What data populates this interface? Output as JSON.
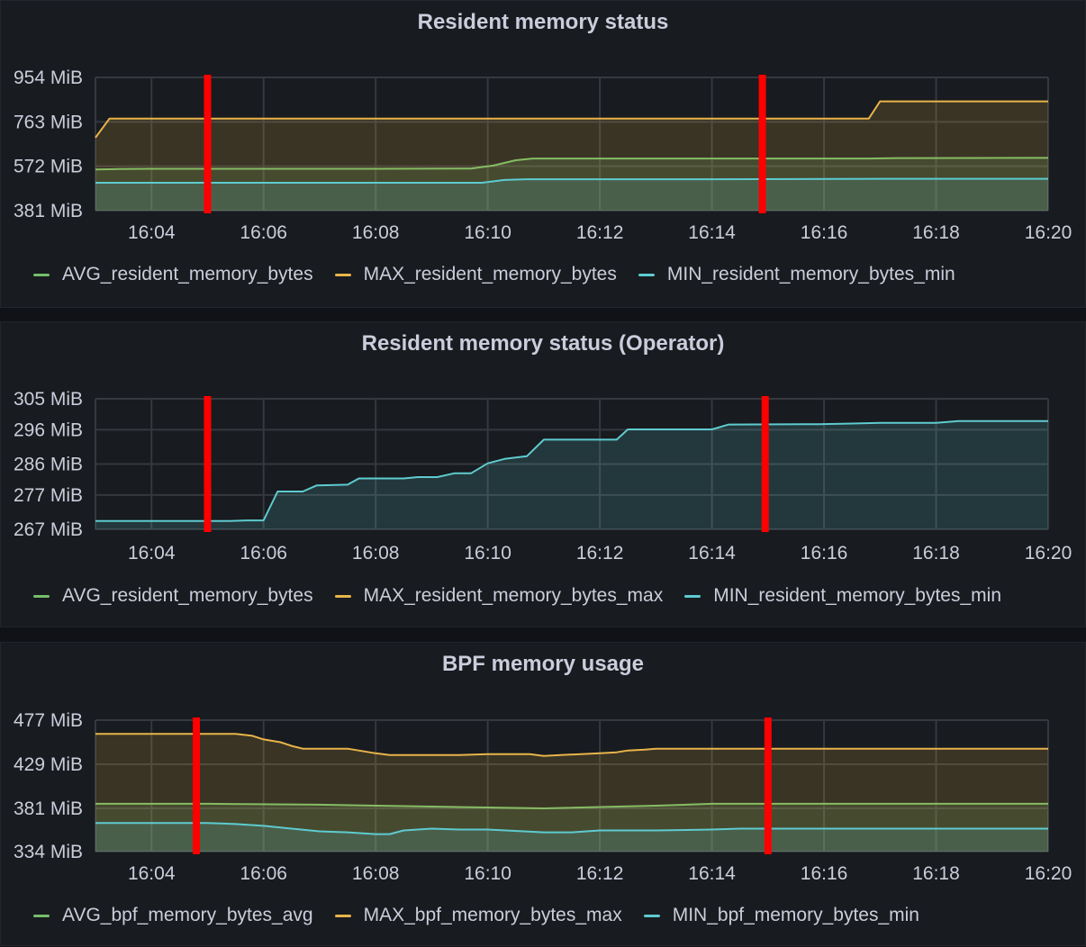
{
  "colors": {
    "avg": "#73bf69",
    "max": "#e8b44a",
    "min": "#5ecbd0",
    "marker": "#ff0000",
    "grid": "#35383e",
    "axis_text": "#ccccdc"
  },
  "chart_data": [
    {
      "type": "area",
      "title": "Resident memory status",
      "xlabel": "",
      "ylabel": "",
      "x_ticks": [
        "16:04",
        "16:06",
        "16:08",
        "16:10",
        "16:12",
        "16:14",
        "16:16",
        "16:18",
        "16:20"
      ],
      "y_ticks": [
        "954 MiB",
        "763 MiB",
        "572 MiB",
        "381 MiB"
      ],
      "xlim": [
        "16:03",
        "16:20"
      ],
      "ylim": [
        381,
        954
      ],
      "y_unit": "MiB",
      "grid": true,
      "legend_position": "bottom",
      "markers_x": [
        "16:05",
        "16:14.9"
      ],
      "series": [
        {
          "name": "AVG_resident_memory_bytes",
          "color_key": "avg",
          "x": [
            "16:03",
            "16:03.4",
            "16:04",
            "16:06",
            "16:08",
            "16:09.7",
            "16:10.1",
            "16:10.5",
            "16:10.8",
            "16:12",
            "16:14",
            "16:16.8",
            "16:17.3",
            "16:20"
          ],
          "y": [
            558,
            560,
            561,
            561,
            561,
            562,
            575,
            598,
            605,
            605,
            605,
            605,
            607,
            608
          ]
        },
        {
          "name": "MAX_resident_memory_bytes",
          "color_key": "max",
          "x": [
            "16:03",
            "16:03.25",
            "16:04",
            "16:06",
            "16:08",
            "16:10",
            "16:12",
            "16:14",
            "16:16.8",
            "16:17",
            "16:20"
          ],
          "y": [
            695,
            777,
            777,
            777,
            777,
            777,
            777,
            777,
            777,
            851,
            851
          ]
        },
        {
          "name": "MIN_resident_memory_bytes_min",
          "color_key": "min",
          "x": [
            "16:03",
            "16:06",
            "16:09.9",
            "16:10.3",
            "16:10.7",
            "16:12",
            "16:14",
            "16:17",
            "16:20"
          ],
          "y": [
            501,
            501,
            501,
            513,
            516,
            516,
            516,
            518,
            518
          ]
        }
      ]
    },
    {
      "type": "area",
      "title": "Resident memory status (Operator)",
      "xlabel": "",
      "ylabel": "",
      "x_ticks": [
        "16:04",
        "16:06",
        "16:08",
        "16:10",
        "16:12",
        "16:14",
        "16:16",
        "16:18",
        "16:20"
      ],
      "y_ticks": [
        "305 MiB",
        "296 MiB",
        "286 MiB",
        "277 MiB",
        "267 MiB"
      ],
      "xlim": [
        "16:03",
        "16:20"
      ],
      "ylim": [
        267,
        305
      ],
      "y_unit": "MiB",
      "grid": true,
      "legend_position": "bottom",
      "markers_x": [
        "16:05",
        "16:14.95"
      ],
      "series": [
        {
          "name": "MIN_resident_memory_bytes_min",
          "color_key": "min",
          "x": [
            "16:03",
            "16:05.2",
            "16:05.4",
            "16:05.7",
            "16:06",
            "16:06.25",
            "16:06.7",
            "16:06.95",
            "16:07.5",
            "16:07.7",
            "16:08.5",
            "16:08.75",
            "16:09.1",
            "16:09.4",
            "16:09.7",
            "16:10",
            "16:10.3",
            "16:10.7",
            "16:11",
            "16:12.3",
            "16:12.5",
            "16:14",
            "16:14.3",
            "16:15.9",
            "16:16.5",
            "16:17",
            "16:18",
            "16:18.4",
            "16:20"
          ],
          "y": [
            269.4,
            269.4,
            269.4,
            269.6,
            269.6,
            278,
            278,
            279.8,
            280,
            281.8,
            281.8,
            282.2,
            282.2,
            283.3,
            283.3,
            286.2,
            287.5,
            288.3,
            293.1,
            293.1,
            296.1,
            296.1,
            297.5,
            297.6,
            297.8,
            298,
            298,
            298.5,
            298.5
          ]
        },
        {
          "name": "AVG_resident_memory_bytes",
          "color_key": "avg",
          "x": [],
          "y": []
        },
        {
          "name": "MAX_resident_memory_bytes_max",
          "color_key": "max",
          "x": [],
          "y": []
        }
      ],
      "legend_order": [
        "AVG_resident_memory_bytes",
        "MAX_resident_memory_bytes_max",
        "MIN_resident_memory_bytes_min"
      ]
    },
    {
      "type": "area",
      "title": "BPF memory usage",
      "xlabel": "",
      "ylabel": "",
      "x_ticks": [
        "16:04",
        "16:06",
        "16:08",
        "16:10",
        "16:12",
        "16:14",
        "16:16",
        "16:18",
        "16:20"
      ],
      "y_ticks": [
        "477 MiB",
        "429 MiB",
        "381 MiB",
        "334 MiB"
      ],
      "xlim": [
        "16:03",
        "16:20"
      ],
      "ylim": [
        334,
        477
      ],
      "y_unit": "MiB",
      "grid": true,
      "legend_position": "bottom",
      "markers_x": [
        "16:04.8",
        "16:15"
      ],
      "series": [
        {
          "name": "AVG_bpf_memory_bytes_avg",
          "color_key": "avg",
          "x": [
            "16:03",
            "16:05",
            "16:07",
            "16:09",
            "16:11",
            "16:13",
            "16:14",
            "16:20"
          ],
          "y": [
            386,
            386,
            385,
            383,
            381,
            384,
            386,
            386
          ]
        },
        {
          "name": "MAX_bpf_memory_bytes_max",
          "color_key": "max",
          "x": [
            "16:03",
            "16:05.5",
            "16:05.8",
            "16:06",
            "16:06.3",
            "16:06.5",
            "16:06.7",
            "16:07.5",
            "16:08",
            "16:08.25",
            "16:09.5",
            "16:10",
            "16:10.75",
            "16:11",
            "16:11.3",
            "16:12",
            "16:12.3",
            "16:12.5",
            "16:12.8",
            "16:13",
            "16:14",
            "16:20"
          ],
          "y": [
            462,
            462,
            460,
            456,
            453,
            449,
            446,
            446,
            441,
            439,
            439,
            440,
            440,
            438,
            439,
            441,
            442,
            444,
            445,
            446,
            446,
            446
          ]
        },
        {
          "name": "MIN_bpf_memory_bytes_min",
          "color_key": "min",
          "x": [
            "16:03",
            "16:04.5",
            "16:05",
            "16:05.5",
            "16:06",
            "16:06.5",
            "16:07",
            "16:07.5",
            "16:08",
            "16:08.25",
            "16:08.5",
            "16:08.75",
            "16:09",
            "16:09.5",
            "16:10",
            "16:11",
            "16:11.5",
            "16:12",
            "16:13",
            "16:14",
            "16:14.5",
            "16:20"
          ],
          "y": [
            365,
            365,
            365,
            364,
            362,
            359,
            356,
            355,
            353,
            353,
            357,
            358,
            359,
            358,
            358,
            355,
            355,
            357,
            357,
            358,
            359,
            359
          ]
        }
      ]
    }
  ]
}
